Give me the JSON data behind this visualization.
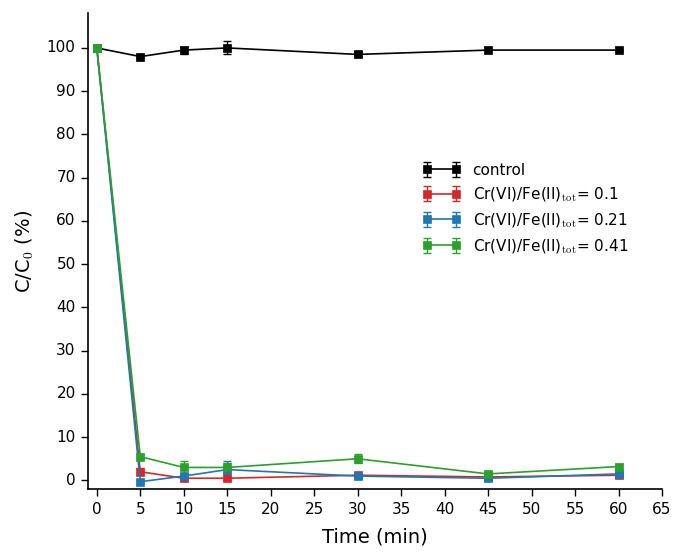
{
  "time": [
    0,
    5,
    10,
    15,
    30,
    45,
    60
  ],
  "control": {
    "y": [
      100,
      98.0,
      99.5,
      100.0,
      98.5,
      99.5,
      99.5
    ],
    "yerr": [
      0.0,
      0.4,
      0.8,
      1.5,
      0.5,
      0.3,
      0.3
    ],
    "color": "#000000",
    "label": "control"
  },
  "red": {
    "y": [
      100,
      2.0,
      0.5,
      0.5,
      1.2,
      0.8,
      1.2
    ],
    "yerr": [
      0.0,
      0.8,
      0.3,
      0.3,
      0.5,
      0.8,
      0.5
    ],
    "color": "#d62728",
    "label": "Cr(VI)/Fe(II)$_\\mathrm{tot}$= 0.1"
  },
  "blue": {
    "y": [
      100,
      -0.3,
      1.0,
      2.5,
      1.0,
      0.5,
      1.5
    ],
    "yerr": [
      0.0,
      0.5,
      0.5,
      2.0,
      0.5,
      0.3,
      0.5
    ],
    "color": "#1f77b4",
    "label": "Cr(VI)/Fe(II)$_\\mathrm{tot}$= 0.21"
  },
  "green": {
    "y": [
      100,
      5.5,
      3.0,
      3.0,
      5.0,
      1.5,
      3.2
    ],
    "yerr": [
      0.0,
      0.5,
      1.5,
      1.0,
      1.0,
      0.5,
      0.5
    ],
    "color": "#2ca02c",
    "label": "Cr(VI)/Fe(II)$_\\mathrm{tot}$= 0.41"
  },
  "xlabel": "Time (min)",
  "ylabel": "C/C$_0$ (%)",
  "xlim": [
    -1,
    65
  ],
  "ylim": [
    -2,
    108
  ],
  "xticks": [
    0,
    5,
    10,
    15,
    20,
    25,
    30,
    35,
    40,
    45,
    50,
    55,
    60,
    65
  ],
  "yticks": [
    0,
    10,
    20,
    30,
    40,
    50,
    60,
    70,
    80,
    90,
    100
  ],
  "figsize": [
    6.85,
    5.6
  ],
  "dpi": 100
}
